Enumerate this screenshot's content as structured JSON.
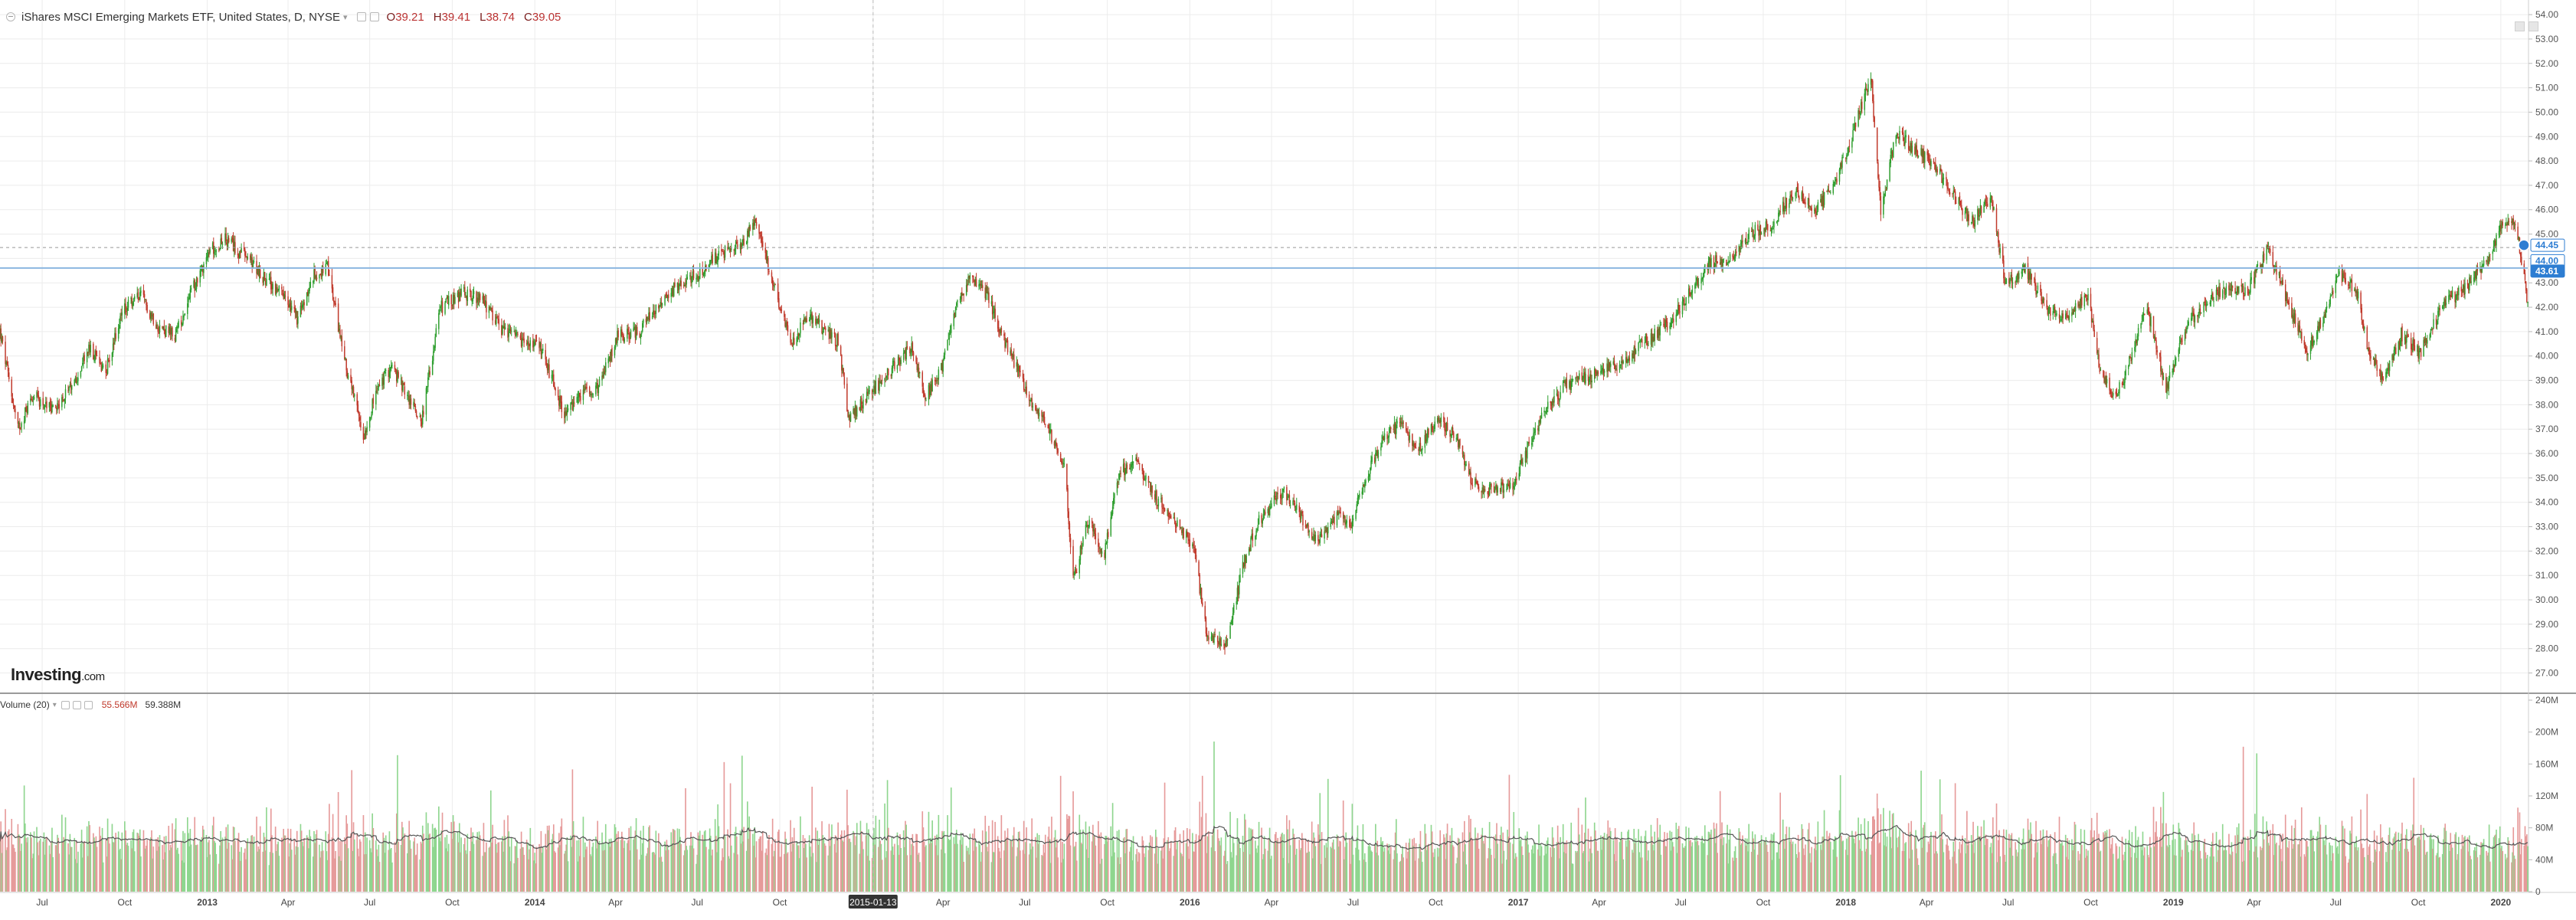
{
  "header": {
    "symbol": "iShares MSCI Emerging Markets ETF, United States, D, NYSE",
    "caret": "▾",
    "open_label": "O",
    "open_value": "39.21",
    "high_label": "H",
    "high_value": "39.41",
    "low_label": "L",
    "low_value": "38.74",
    "close_label": "C",
    "close_value": "39.05"
  },
  "volume_header": {
    "label": "Volume (20)",
    "caret": "▾",
    "volume_value": "55.566M",
    "ma_value": "59.388M"
  },
  "logo": {
    "main": "Investing",
    "suffix": ".com"
  },
  "chart_data": {
    "type": "candlestick",
    "x_ticks": [
      "Jul",
      "Oct",
      "2013",
      "Apr",
      "Jul",
      "Oct",
      "2014",
      "Apr",
      "Jul",
      "Oct",
      "2015-01-13",
      "Apr",
      "Jul",
      "Oct",
      "2016",
      "Apr",
      "Jul",
      "Oct",
      "2017",
      "Apr",
      "Jul",
      "Oct",
      "2018",
      "Apr",
      "Jul",
      "Oct",
      "2019",
      "Apr",
      "Jul",
      "Oct",
      "2020"
    ],
    "x_range": [
      "2012-05-15",
      "2020-01-31"
    ],
    "crosshair_date": "2015-01-13",
    "price_axis": {
      "ticks": [
        "54.00",
        "53.00",
        "52.00",
        "51.00",
        "50.00",
        "49.00",
        "48.00",
        "47.00",
        "46.00",
        "45.00",
        "44.00",
        "43.00",
        "42.00",
        "41.00",
        "40.00",
        "39.00",
        "38.00",
        "37.00",
        "36.00",
        "35.00",
        "34.00",
        "33.00",
        "32.00",
        "31.00",
        "30.00",
        "29.00",
        "28.00",
        "27.00"
      ],
      "range": [
        26.2,
        54.6
      ],
      "markers": [
        {
          "text": "44.45",
          "value": 44.45,
          "style": "outline"
        },
        {
          "text": "44.00",
          "value": 44.0,
          "style": "outline"
        },
        {
          "text": "43.61",
          "value": 43.61,
          "style": "filled"
        }
      ],
      "horizontal_line": 43.61,
      "dashed_line": 44.45
    },
    "volume_axis": {
      "ticks": [
        "240M",
        "200M",
        "160M",
        "120M",
        "80M",
        "40M",
        "0"
      ],
      "range": [
        0,
        240
      ]
    },
    "price_path": [
      [
        "2012-05-15",
        41.0
      ],
      [
        "2012-06-04",
        37.0
      ],
      [
        "2012-06-20",
        38.4
      ],
      [
        "2012-07-12",
        37.8
      ],
      [
        "2012-08-02",
        38.6
      ],
      [
        "2012-08-22",
        40.3
      ],
      [
        "2012-09-10",
        39.4
      ],
      [
        "2012-09-28",
        41.8
      ],
      [
        "2012-10-18",
        42.5
      ],
      [
        "2012-11-08",
        41.2
      ],
      [
        "2012-11-26",
        40.8
      ],
      [
        "2012-12-12",
        42.4
      ],
      [
        "2013-01-03",
        44.3
      ],
      [
        "2013-01-20",
        44.8
      ],
      [
        "2013-02-15",
        44.0
      ],
      [
        "2013-03-05",
        43.2
      ],
      [
        "2013-03-25",
        42.5
      ],
      [
        "2013-04-12",
        41.5
      ],
      [
        "2013-04-30",
        43.3
      ],
      [
        "2013-05-15",
        43.6
      ],
      [
        "2013-06-05",
        39.5
      ],
      [
        "2013-06-24",
        36.7
      ],
      [
        "2013-07-08",
        38.5
      ],
      [
        "2013-07-25",
        39.6
      ],
      [
        "2013-08-14",
        38.2
      ],
      [
        "2013-08-28",
        37.4
      ],
      [
        "2013-09-18",
        42.0
      ],
      [
        "2013-10-15",
        42.6
      ],
      [
        "2013-11-05",
        42.2
      ],
      [
        "2013-11-25",
        41.0
      ],
      [
        "2013-12-18",
        40.6
      ],
      [
        "2014-01-08",
        40.3
      ],
      [
        "2014-02-04",
        37.5
      ],
      [
        "2014-02-25",
        38.6
      ],
      [
        "2014-03-15",
        38.8
      ],
      [
        "2014-04-02",
        40.8
      ],
      [
        "2014-04-28",
        41.0
      ],
      [
        "2014-05-20",
        42.2
      ],
      [
        "2014-06-12",
        43.0
      ],
      [
        "2014-07-03",
        43.4
      ],
      [
        "2014-07-28",
        44.2
      ],
      [
        "2014-08-20",
        44.6
      ],
      [
        "2014-09-05",
        45.6
      ],
      [
        "2014-09-25",
        42.8
      ],
      [
        "2014-10-14",
        40.4
      ],
      [
        "2014-10-30",
        41.7
      ],
      [
        "2014-11-15",
        41.2
      ],
      [
        "2014-12-05",
        40.6
      ],
      [
        "2014-12-17",
        37.4
      ],
      [
        "2015-01-13",
        38.6
      ],
      [
        "2015-02-05",
        39.6
      ],
      [
        "2015-02-26",
        40.4
      ],
      [
        "2015-03-12",
        38.3
      ],
      [
        "2015-03-30",
        39.5
      ],
      [
        "2015-04-15",
        42.0
      ],
      [
        "2015-04-30",
        43.2
      ],
      [
        "2015-05-20",
        42.5
      ],
      [
        "2015-06-10",
        40.5
      ],
      [
        "2015-07-08",
        38.2
      ],
      [
        "2015-07-25",
        37.2
      ],
      [
        "2015-08-15",
        35.4
      ],
      [
        "2015-08-24",
        30.8
      ],
      [
        "2015-09-10",
        33.3
      ],
      [
        "2015-09-28",
        31.9
      ],
      [
        "2015-10-15",
        35.3
      ],
      [
        "2015-11-04",
        35.7
      ],
      [
        "2015-11-22",
        34.3
      ],
      [
        "2015-12-15",
        33.2
      ],
      [
        "2016-01-05",
        32.2
      ],
      [
        "2016-01-20",
        28.5
      ],
      [
        "2016-02-11",
        28.2
      ],
      [
        "2016-03-01",
        31.5
      ],
      [
        "2016-03-18",
        33.3
      ],
      [
        "2016-04-15",
        34.5
      ],
      [
        "2016-05-05",
        33.3
      ],
      [
        "2016-05-24",
        32.4
      ],
      [
        "2016-06-15",
        33.5
      ],
      [
        "2016-06-27",
        33.0
      ],
      [
        "2016-07-15",
        35.0
      ],
      [
        "2016-08-05",
        36.8
      ],
      [
        "2016-08-24",
        37.2
      ],
      [
        "2016-09-12",
        36.2
      ],
      [
        "2016-10-05",
        37.5
      ],
      [
        "2016-10-25",
        36.5
      ],
      [
        "2016-11-10",
        34.8
      ],
      [
        "2016-12-01",
        34.5
      ],
      [
        "2016-12-27",
        34.8
      ],
      [
        "2017-01-25",
        37.4
      ],
      [
        "2017-02-22",
        38.8
      ],
      [
        "2017-03-22",
        39.2
      ],
      [
        "2017-04-20",
        39.6
      ],
      [
        "2017-05-22",
        40.6
      ],
      [
        "2017-06-20",
        41.4
      ],
      [
        "2017-07-12",
        42.6
      ],
      [
        "2017-07-31",
        43.8
      ],
      [
        "2017-08-25",
        44.0
      ],
      [
        "2017-09-15",
        45.0
      ],
      [
        "2017-10-10",
        45.4
      ],
      [
        "2017-11-05",
        46.8
      ],
      [
        "2017-11-28",
        46.0
      ],
      [
        "2017-12-18",
        46.9
      ],
      [
        "2018-01-08",
        49.0
      ],
      [
        "2018-01-29",
        51.6
      ],
      [
        "2018-02-09",
        45.8
      ],
      [
        "2018-02-26",
        49.2
      ],
      [
        "2018-03-15",
        48.6
      ],
      [
        "2018-04-10",
        47.8
      ],
      [
        "2018-04-30",
        46.6
      ],
      [
        "2018-05-22",
        45.5
      ],
      [
        "2018-06-12",
        46.5
      ],
      [
        "2018-06-28",
        43.0
      ],
      [
        "2018-07-20",
        43.6
      ],
      [
        "2018-08-15",
        41.8
      ],
      [
        "2018-09-05",
        41.6
      ],
      [
        "2018-09-28",
        42.5
      ],
      [
        "2018-10-11",
        39.4
      ],
      [
        "2018-10-29",
        38.3
      ],
      [
        "2018-11-15",
        40.0
      ],
      [
        "2018-12-03",
        42.0
      ],
      [
        "2018-12-24",
        38.6
      ],
      [
        "2019-01-15",
        41.2
      ],
      [
        "2019-02-05",
        42.2
      ],
      [
        "2019-02-28",
        42.8
      ],
      [
        "2019-03-25",
        42.7
      ],
      [
        "2019-04-17",
        44.4
      ],
      [
        "2019-05-13",
        41.8
      ],
      [
        "2019-05-30",
        40.2
      ],
      [
        "2019-06-15",
        41.4
      ],
      [
        "2019-07-05",
        43.4
      ],
      [
        "2019-07-25",
        42.6
      ],
      [
        "2019-08-06",
        40.2
      ],
      [
        "2019-08-23",
        39.0
      ],
      [
        "2019-09-12",
        40.9
      ],
      [
        "2019-10-03",
        40.1
      ],
      [
        "2019-10-30",
        42.2
      ],
      [
        "2019-11-20",
        42.7
      ],
      [
        "2019-12-15",
        43.8
      ],
      [
        "2020-01-02",
        45.3
      ],
      [
        "2020-01-17",
        45.6
      ],
      [
        "2020-01-31",
        42.2
      ]
    ],
    "volume_scale_note": ""
  },
  "colors": {
    "up": "#2e9e2e",
    "down": "#c0392b",
    "vol_up": "#8fd68f",
    "vol_down": "#e69a9a",
    "grid": "#ececec",
    "hline": "#8bb6e0",
    "accent": "#2d7dd2"
  }
}
